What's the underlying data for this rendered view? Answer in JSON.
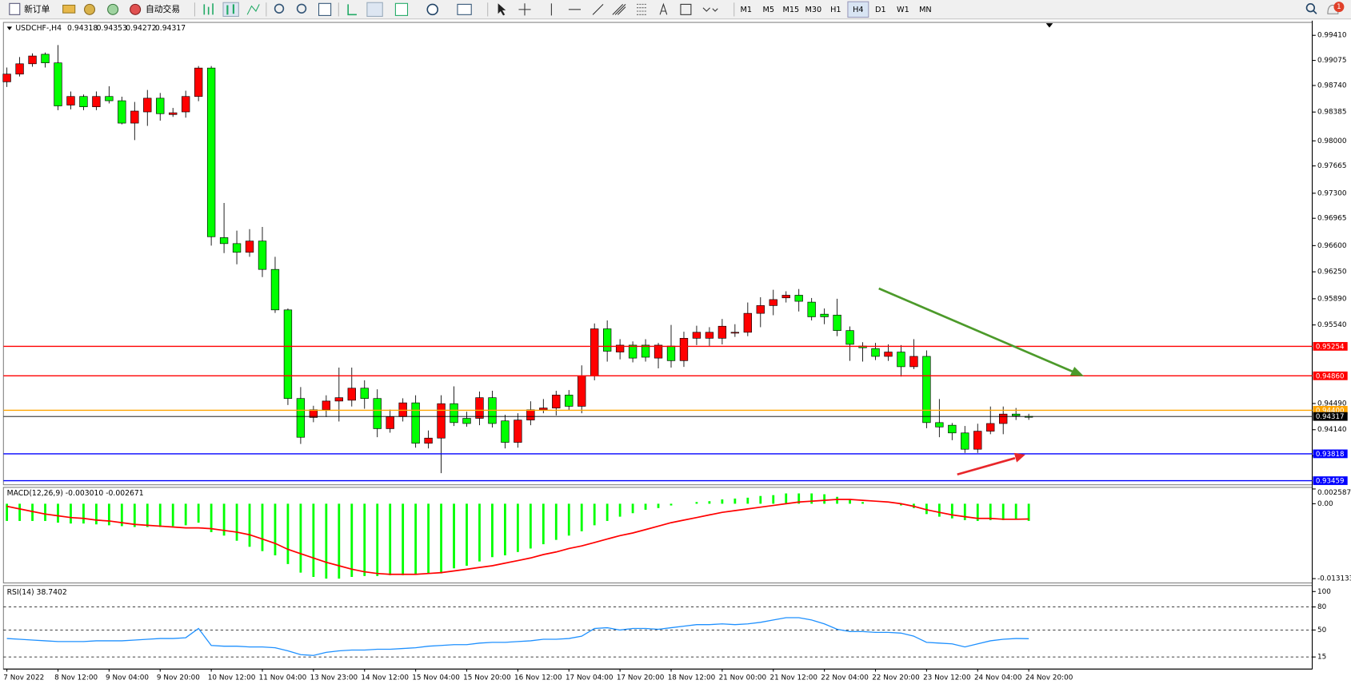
{
  "toolbar": {
    "new_order": "新订单",
    "auto_trading": "自动交易",
    "timeframes": [
      "M1",
      "M5",
      "M15",
      "M30",
      "H1",
      "H4",
      "D1",
      "W1",
      "MN"
    ],
    "active_timeframe": "H4",
    "notification_count": "1"
  },
  "chart_data": [
    {
      "type": "candlestick",
      "title": "USDCHF-,H4",
      "categories": [
        "7 Nov 2022",
        null,
        null,
        null,
        "8 Nov 12:00",
        null,
        null,
        null,
        "9 Nov 04:00",
        null,
        null,
        null,
        "9 Nov 20:00",
        null,
        null,
        null,
        "10 Nov 12:00",
        null,
        null,
        null,
        "11 Nov 04:00",
        null,
        null,
        null,
        "13 Nov 23:00",
        null,
        null,
        null,
        "14 Nov 12:00",
        null,
        null,
        null,
        "15 Nov 04:00",
        null,
        null,
        null,
        "15 Nov 20:00",
        null,
        null,
        null,
        "16 Nov 12:00",
        null,
        null,
        null,
        "17 Nov 04:00",
        null,
        null,
        null,
        "17 Nov 20:00",
        null,
        null,
        null,
        "18 Nov 12:00",
        null,
        null,
        null,
        "21 Nov 00:00",
        null,
        null,
        null,
        "21 Nov 12:00",
        null,
        null,
        null,
        "22 Nov 04:00",
        null,
        null,
        null,
        "22 Nov 20:00",
        null,
        null,
        null,
        "23 Nov 12:00",
        null,
        null,
        null,
        "24 Nov 04:00",
        null,
        null,
        null,
        "24 Nov 20:00"
      ],
      "open": [
        0.98789,
        0.98892,
        0.9903,
        0.99157,
        0.99042,
        0.98478,
        0.98593,
        0.98455,
        0.98593,
        0.98536,
        0.98237,
        0.98387,
        0.9857,
        0.98352,
        0.98387,
        0.98593,
        0.98973,
        0.96707,
        0.96627,
        0.96511,
        0.96661,
        0.96282,
        0.95741,
        0.94557,
        0.94304,
        0.94407,
        0.94523,
        0.94534,
        0.94695,
        0.94557,
        0.94154,
        0.94315,
        0.94499,
        0.93959,
        0.94028,
        0.94488,
        0.94292,
        0.94292,
        0.94568,
        0.94258,
        0.93971,
        0.94269,
        0.94407,
        0.9443,
        0.94603,
        0.94453,
        0.94856,
        0.95488,
        0.95178,
        0.9527,
        0.9527,
        0.95097,
        0.95258,
        0.95063,
        0.95362,
        0.95362,
        0.95362,
        0.95431,
        0.95442,
        0.95695,
        0.95799,
        0.95902,
        0.95937,
        0.95845,
        0.95684,
        0.95672,
        0.95465,
        0.95258,
        0.95224,
        0.9512,
        0.95178,
        0.94982,
        0.9512,
        0.94235,
        0.942,
        0.94097,
        0.93879,
        0.9412,
        0.94223,
        0.94349,
        0.94318
      ],
      "high": [
        0.9898,
        0.9912,
        0.9917,
        0.9918,
        0.9928,
        0.9866,
        0.9862,
        0.9866,
        0.9873,
        0.9859,
        0.9852,
        0.9868,
        0.9864,
        0.9844,
        0.9867,
        0.99,
        0.99,
        0.9717,
        0.968,
        0.9682,
        0.9685,
        0.9645,
        0.9576,
        0.9471,
        0.9446,
        0.946,
        0.9497,
        0.9497,
        0.948,
        0.9468,
        0.9441,
        0.9456,
        0.946,
        0.9413,
        0.946,
        0.9472,
        0.9438,
        0.9465,
        0.9466,
        0.9434,
        0.9436,
        0.9452,
        0.9455,
        0.9466,
        0.9467,
        0.95,
        0.9556,
        0.956,
        0.9535,
        0.9532,
        0.9535,
        0.953,
        0.9554,
        0.9545,
        0.9553,
        0.9551,
        0.9562,
        0.9555,
        0.9584,
        0.9591,
        0.9601,
        0.9599,
        0.9602,
        0.959,
        0.9576,
        0.9589,
        0.9552,
        0.9531,
        0.953,
        0.9528,
        0.9527,
        0.9535,
        0.952,
        0.9455,
        0.9423,
        0.9419,
        0.9422,
        0.9445,
        0.9445,
        0.9443,
        0.94353
      ],
      "low": [
        0.9872,
        0.9886,
        0.9899,
        0.9898,
        0.9841,
        0.9842,
        0.9841,
        0.9841,
        0.985,
        0.9822,
        0.9801,
        0.982,
        0.9827,
        0.9832,
        0.9831,
        0.9853,
        0.966,
        0.965,
        0.9635,
        0.9645,
        0.9618,
        0.957,
        0.9447,
        0.9395,
        0.9424,
        0.9431,
        0.9425,
        0.9445,
        0.9442,
        0.9404,
        0.941,
        0.9425,
        0.939,
        0.9389,
        0.9356,
        0.9419,
        0.9418,
        0.942,
        0.9417,
        0.9389,
        0.939,
        0.942,
        0.9436,
        0.9433,
        0.944,
        0.9436,
        0.948,
        0.9505,
        0.9508,
        0.9504,
        0.9505,
        0.9496,
        0.9497,
        0.9498,
        0.9527,
        0.9526,
        0.9528,
        0.9538,
        0.9539,
        0.9551,
        0.9567,
        0.9584,
        0.9572,
        0.956,
        0.9555,
        0.9539,
        0.9506,
        0.9505,
        0.9507,
        0.9506,
        0.9485,
        0.9495,
        0.9416,
        0.9404,
        0.94,
        0.9383,
        0.9383,
        0.9408,
        0.9408,
        0.9427,
        0.94272
      ],
      "close": [
        0.98892,
        0.9903,
        0.99134,
        0.99042,
        0.98467,
        0.98593,
        0.98455,
        0.98593,
        0.98536,
        0.98237,
        0.98398,
        0.9857,
        0.98363,
        0.98375,
        0.98593,
        0.98973,
        0.96719,
        0.96627,
        0.96511,
        0.96661,
        0.96282,
        0.95741,
        0.94557,
        0.94039,
        0.94407,
        0.94523,
        0.94568,
        0.94695,
        0.94557,
        0.94154,
        0.94315,
        0.94499,
        0.93959,
        0.94028,
        0.94488,
        0.94235,
        0.94223,
        0.94568,
        0.94223,
        0.93971,
        0.94269,
        0.94407,
        0.9443,
        0.94603,
        0.94453,
        0.94856,
        0.95488,
        0.95189,
        0.9527,
        0.95097,
        0.95109,
        0.9527,
        0.95063,
        0.95362,
        0.95442,
        0.95442,
        0.95523,
        0.95442,
        0.95695,
        0.95799,
        0.95879,
        0.95937,
        0.95856,
        0.95649,
        0.95649,
        0.95465,
        0.95281,
        0.95235,
        0.9512,
        0.95178,
        0.94982,
        0.9512,
        0.94235,
        0.94177,
        0.94097,
        0.93879,
        0.9412,
        0.94223,
        0.94349,
        0.94327,
        0.94317
      ],
      "up_color": "#ff0000",
      "down_color": "#00ff00",
      "ylim": [
        0.93404,
        0.99583
      ],
      "yticks": [
        {
          "value": 0.9941,
          "label": "0.99410"
        },
        0.99075,
        {
          "value": 0.9874,
          "label": "0.98740"
        },
        0.98385,
        {
          "value": 0.98,
          "label": "0.98000"
        },
        0.97665,
        {
          "value": 0.973,
          "label": "0.97300"
        },
        0.96965,
        {
          "value": 0.966,
          "label": "0.96600"
        },
        {
          "value": 0.9625,
          "label": "0.96250"
        },
        {
          "value": 0.9589,
          "label": "0.95890"
        },
        {
          "value": 0.9554,
          "label": "0.95540"
        },
        {
          "value": 0.9449,
          "label": "0.94490"
        },
        {
          "value": 0.9414,
          "label": "0.94140"
        },
        {
          "value": 0.9379,
          "label": "0.93790"
        }
      ],
      "levels": [
        {
          "value": 0.95254,
          "color": "#ff0000"
        },
        {
          "value": 0.9486,
          "label": "0.94860",
          "color": "#ff0000"
        },
        {
          "value": 0.944,
          "label": "0.94400",
          "color": "#ffa500"
        },
        {
          "value": 0.94317,
          "color": "#000000"
        },
        {
          "value": 0.93818,
          "color": "#0000ff"
        },
        {
          "value": 0.93459,
          "color": "#0000ff"
        }
      ]
    },
    {
      "type": "macd",
      "title": "MACD(12,26,9) -0.003010 -0.002671",
      "series": [
        {
          "color": "#00ff00",
          "values": [
            -0.00302,
            -0.00302,
            -0.00302,
            -0.00302,
            -0.00332,
            -0.00347,
            -0.00347,
            -0.00362,
            -0.00378,
            -0.00393,
            -0.00408,
            -0.00408,
            -0.00408,
            -0.00393,
            -0.00378,
            -0.00332,
            -0.00498,
            -0.00559,
            -0.00649,
            -0.00755,
            -0.00831,
            -0.00906,
            -0.01057,
            -0.01208,
            -0.01284,
            -0.01314,
            -0.01314,
            -0.01284,
            -0.01268,
            -0.01268,
            -0.01253,
            -0.01253,
            -0.01238,
            -0.01223,
            -0.01223,
            -0.01133,
            -0.01087,
            -0.01012,
            -0.00936,
            -0.00906,
            -0.00846,
            -0.00785,
            -0.0071,
            -0.00634,
            -0.00559,
            -0.00483,
            -0.00378,
            -0.00302,
            -0.00227,
            -0.00166,
            -0.00106,
            -0.00076,
            -0.0003,
            0,
            0.0003,
            0.00045,
            0.00076,
            0.00091,
            0.00106,
            0.00136,
            0.00151,
            0.00181,
            0.00181,
            0.00181,
            0.00166,
            0.00121,
            0.00076,
            0.0003,
            0,
            0,
            -0.0003,
            -0.00076,
            -0.00181,
            -0.00227,
            -0.00257,
            -0.00287,
            -0.00302,
            -0.00287,
            -0.00287,
            -0.00272,
            -0.00301
          ]
        },
        {
          "color": "#ff0000",
          "values": [
            -0.00045,
            -0.00091,
            -0.00136,
            -0.00181,
            -0.00211,
            -0.00242,
            -0.00257,
            -0.00287,
            -0.00302,
            -0.00332,
            -0.00362,
            -0.00378,
            -0.00393,
            -0.00408,
            -0.00423,
            -0.00423,
            -0.00438,
            -0.00468,
            -0.00498,
            -0.00544,
            -0.00619,
            -0.00695,
            -0.008,
            -0.00876,
            -0.00951,
            -0.01027,
            -0.01087,
            -0.01148,
            -0.01193,
            -0.01223,
            -0.01238,
            -0.01238,
            -0.01238,
            -0.01223,
            -0.01208,
            -0.01178,
            -0.01148,
            -0.01117,
            -0.01087,
            -0.01042,
            -0.00997,
            -0.00951,
            -0.00891,
            -0.00846,
            -0.00785,
            -0.0074,
            -0.0068,
            -0.00619,
            -0.00559,
            -0.00513,
            -0.00453,
            -0.00393,
            -0.00332,
            -0.00287,
            -0.00242,
            -0.00196,
            -0.00151,
            -0.00121,
            -0.00091,
            -0.0006,
            -0.0003,
            0,
            0.0003,
            0.00045,
            0.0006,
            0.00076,
            0.00076,
            0.0006,
            0.00045,
            0.0003,
            0,
            -0.00045,
            -0.00106,
            -0.00151,
            -0.00196,
            -0.00227,
            -0.00257,
            -0.00257,
            -0.00272,
            -0.00272,
            -0.002671
          ]
        }
      ],
      "ylim": [
        -0.01389,
        0.00287
      ],
      "yticks": [
        0.002587,
        {
          "value": 0,
          "label": "0.00"
        },
        -0.013133
      ]
    },
    {
      "type": "line",
      "title": "RSI(14) 38.7402",
      "series": [
        {
          "color": "#1e90ff",
          "values": [
            39,
            38,
            37,
            36,
            35,
            35,
            35,
            36,
            36,
            36,
            37,
            38,
            39,
            39,
            40,
            52,
            30,
            29,
            29,
            28,
            28,
            27,
            23,
            18,
            17,
            21,
            23,
            24,
            24,
            25,
            25,
            26,
            27,
            29,
            30,
            31,
            31,
            33,
            34,
            34,
            35,
            36,
            38,
            38,
            39,
            42,
            52,
            53,
            50,
            52,
            52,
            51,
            53,
            55,
            57,
            57,
            58,
            57,
            58,
            60,
            63,
            66,
            66,
            63,
            58,
            51,
            48,
            48,
            47,
            47,
            46,
            42,
            34,
            33,
            32,
            28,
            32,
            36,
            38,
            39,
            38.7402
          ]
        }
      ],
      "ylim": [
        -0.7,
        107.8
      ],
      "yticks": [
        100,
        80,
        50,
        15
      ],
      "reference_lines": [
        80,
        50,
        15
      ]
    }
  ]
}
